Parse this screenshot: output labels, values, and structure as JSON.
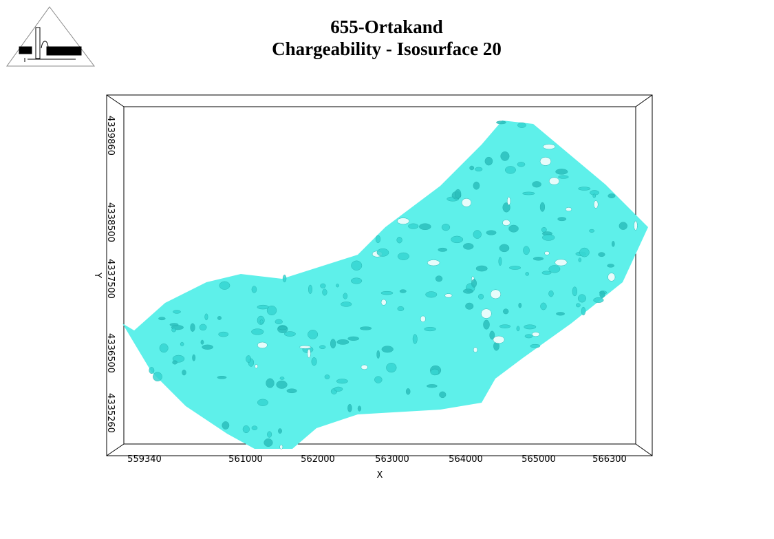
{
  "header": {
    "title": "655-Ortakand",
    "subtitle": "Chargeability - Isosurface 20"
  },
  "x_axis": {
    "label": "X",
    "ticks": [
      "559340",
      "561000",
      "562000",
      "563000",
      "564000",
      "565000",
      "566300"
    ]
  },
  "y_axis": {
    "label": "Y",
    "ticks": [
      "4339860",
      "4338500",
      "4337500",
      "4336500",
      "4335260"
    ]
  }
}
